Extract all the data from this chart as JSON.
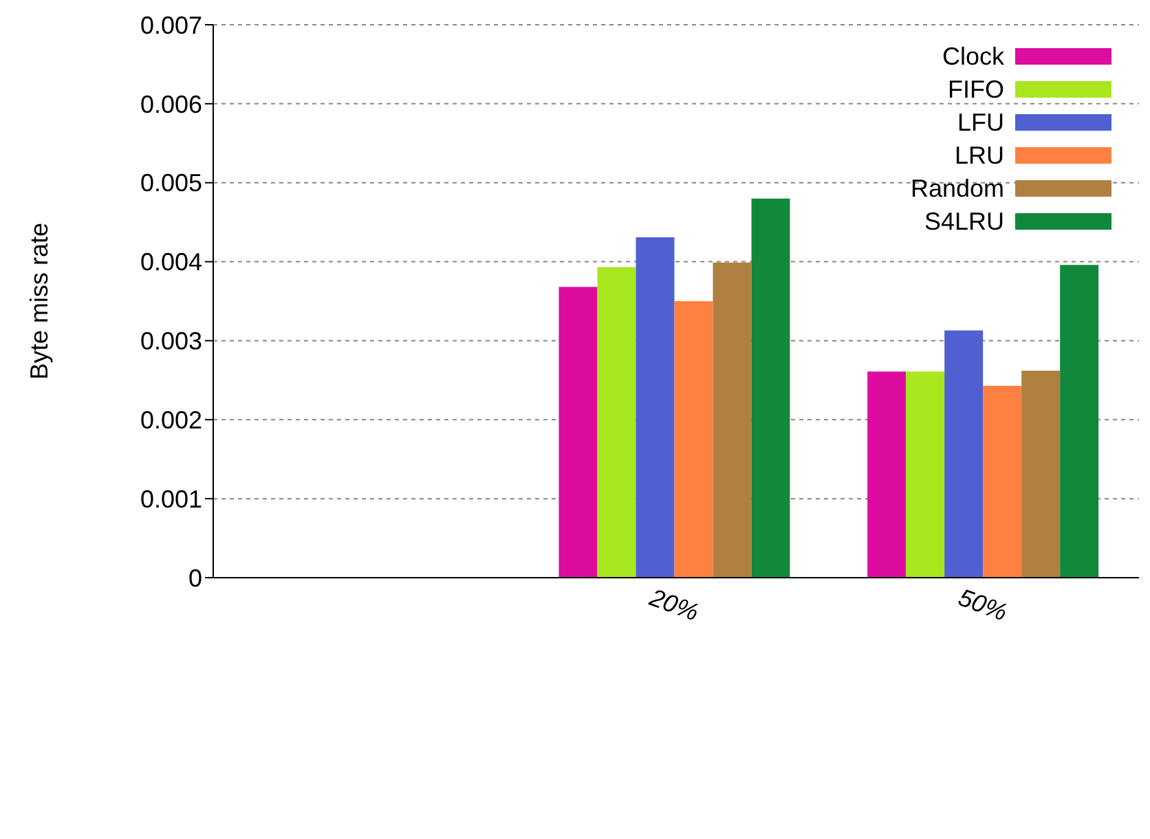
{
  "chart_data": {
    "type": "bar",
    "ylabel": "Byte miss rate",
    "categories": [
      null,
      "20%",
      "50%"
    ],
    "series": [
      {
        "name": "Clock",
        "color": "#dd0ca0",
        "values": [
          null,
          0.00368,
          0.00261
        ]
      },
      {
        "name": "FIFO",
        "color": "#a8e61e",
        "values": [
          null,
          0.00393,
          0.00261
        ]
      },
      {
        "name": "LFU",
        "color": "#5060d0",
        "values": [
          null,
          0.00431,
          0.00313
        ]
      },
      {
        "name": "LRU",
        "color": "#ff8040",
        "values": [
          null,
          0.0035,
          0.00243
        ]
      },
      {
        "name": "Random",
        "color": "#b08040",
        "values": [
          null,
          0.00399,
          0.00262
        ]
      },
      {
        "name": "S4LRU",
        "color": "#11883a",
        "values": [
          null,
          0.0048,
          0.00396
        ]
      }
    ],
    "ylim": [
      0,
      0.007
    ],
    "yticks": [
      0,
      0.001,
      0.002,
      0.003,
      0.004,
      0.005,
      0.006,
      0.007
    ],
    "grid": "y",
    "legend": "top right"
  }
}
